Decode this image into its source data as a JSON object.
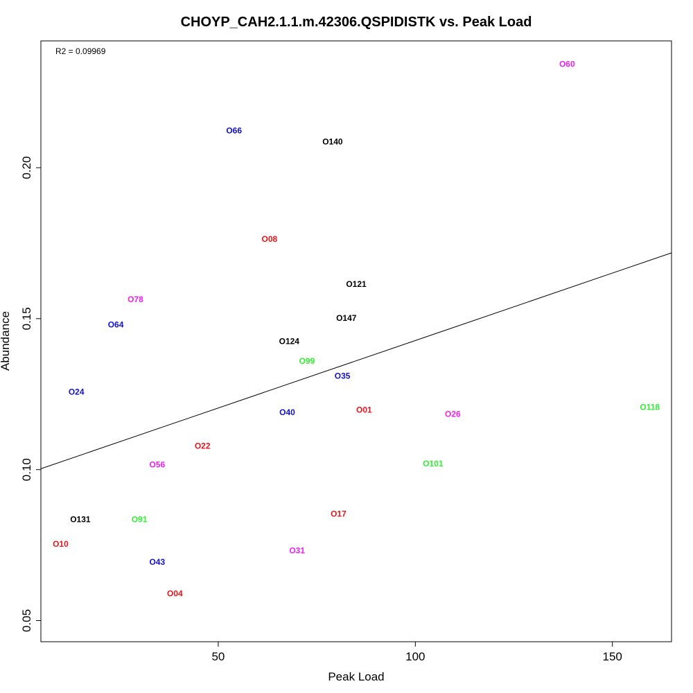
{
  "chart_data": {
    "type": "scatter",
    "title": "CHOYP_CAH2.1.1.m.42306.QSPIDISTK vs. Peak Load",
    "xlabel": "Peak Load",
    "ylabel": "Abundance",
    "annotation": "R2 = 0.09969",
    "xlim": [
      5,
      165
    ],
    "ylim": [
      0.043,
      0.242
    ],
    "x_ticks": [
      50,
      100,
      150
    ],
    "y_ticks": [
      0.05,
      0.1,
      0.15,
      0.2
    ],
    "y_tick_labels": [
      "0.05",
      "0.10",
      "0.15",
      "0.20"
    ],
    "grid": false,
    "regression_line": {
      "x": [
        5,
        165
      ],
      "y": [
        0.1003,
        0.1718
      ]
    },
    "colors": {
      "black": "#000000",
      "red": "#e8141c",
      "blue": "#1111cc",
      "green": "#33ee33",
      "magenta": "#ee22ee"
    },
    "points": [
      {
        "label": "O60",
        "x": 138.5,
        "y": 0.2343,
        "color": "magenta"
      },
      {
        "label": "O66",
        "x": 54.0,
        "y": 0.2123,
        "color": "blue"
      },
      {
        "label": "O140",
        "x": 79.0,
        "y": 0.2086,
        "color": "black"
      },
      {
        "label": "O08",
        "x": 63.0,
        "y": 0.1763,
        "color": "red"
      },
      {
        "label": "O121",
        "x": 85.0,
        "y": 0.1614,
        "color": "black"
      },
      {
        "label": "O78",
        "x": 29.0,
        "y": 0.1564,
        "color": "magenta"
      },
      {
        "label": "O147",
        "x": 82.5,
        "y": 0.1502,
        "color": "black"
      },
      {
        "label": "O64",
        "x": 24.0,
        "y": 0.148,
        "color": "blue"
      },
      {
        "label": "O124",
        "x": 68.0,
        "y": 0.1425,
        "color": "black"
      },
      {
        "label": "O99",
        "x": 72.5,
        "y": 0.136,
        "color": "green"
      },
      {
        "label": "O35",
        "x": 81.5,
        "y": 0.131,
        "color": "blue"
      },
      {
        "label": "O24",
        "x": 14.0,
        "y": 0.1257,
        "color": "blue"
      },
      {
        "label": "O118",
        "x": 159.5,
        "y": 0.1207,
        "color": "green"
      },
      {
        "label": "O01",
        "x": 87.0,
        "y": 0.1198,
        "color": "red"
      },
      {
        "label": "O40",
        "x": 67.5,
        "y": 0.119,
        "color": "blue"
      },
      {
        "label": "O26",
        "x": 109.5,
        "y": 0.1184,
        "color": "magenta"
      },
      {
        "label": "O22",
        "x": 46.0,
        "y": 0.1078,
        "color": "red"
      },
      {
        "label": "O101",
        "x": 104.5,
        "y": 0.102,
        "color": "green"
      },
      {
        "label": "O56",
        "x": 34.5,
        "y": 0.1016,
        "color": "magenta"
      },
      {
        "label": "O17",
        "x": 80.5,
        "y": 0.0853,
        "color": "red"
      },
      {
        "label": "O131",
        "x": 15.0,
        "y": 0.0835,
        "color": "black"
      },
      {
        "label": "O91",
        "x": 30.0,
        "y": 0.0835,
        "color": "green"
      },
      {
        "label": "O10",
        "x": 10.0,
        "y": 0.0754,
        "color": "red"
      },
      {
        "label": "O31",
        "x": 70.0,
        "y": 0.0732,
        "color": "magenta"
      },
      {
        "label": "O43",
        "x": 34.5,
        "y": 0.0694,
        "color": "blue"
      },
      {
        "label": "O04",
        "x": 39.0,
        "y": 0.059,
        "color": "red"
      }
    ]
  }
}
